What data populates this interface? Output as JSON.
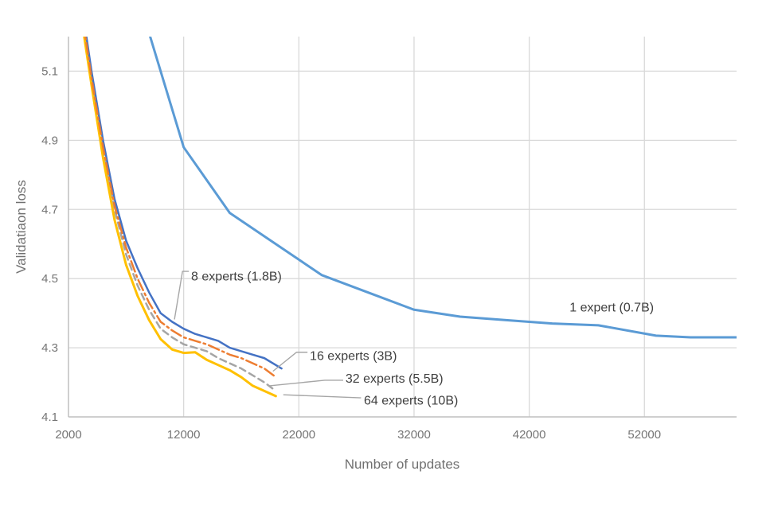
{
  "chart_data": {
    "type": "line",
    "title": "",
    "xlabel": "Number of updates",
    "ylabel": "Validatiaon loss",
    "xlim": [
      2000,
      60000
    ],
    "ylim": [
      4.1,
      5.2
    ],
    "x_ticks": [
      2000,
      12000,
      22000,
      32000,
      42000,
      52000
    ],
    "y_ticks": [
      4.1,
      4.3,
      4.5,
      4.7,
      4.9,
      5.1
    ],
    "grid": true,
    "legend_position": "inline-annotations",
    "colors": {
      "grid": "#D9D9D9",
      "axis": "#BFBFBF",
      "tick_text": "#757575",
      "annotation_text": "#404040",
      "leader_line": "#A6A6A6"
    },
    "series": [
      {
        "name": "1 expert (0.7B)",
        "color": "#5B9BD5",
        "style": "solid",
        "width": 3,
        "points": [
          [
            8000,
            5.32
          ],
          [
            12000,
            4.88
          ],
          [
            16000,
            4.69
          ],
          [
            20000,
            4.6
          ],
          [
            24000,
            4.51
          ],
          [
            28000,
            4.46
          ],
          [
            32000,
            4.41
          ],
          [
            36000,
            4.39
          ],
          [
            40000,
            4.38
          ],
          [
            44000,
            4.37
          ],
          [
            48000,
            4.365
          ],
          [
            53000,
            4.335
          ],
          [
            56000,
            4.33
          ],
          [
            60000,
            4.33
          ]
        ]
      },
      {
        "name": "32 experts (5.5B)",
        "color": "#A5A5A5",
        "style": "dashed",
        "width": 2.5,
        "points": [
          [
            2000,
            5.52
          ],
          [
            4000,
            5.07
          ],
          [
            5000,
            4.87
          ],
          [
            6000,
            4.7
          ],
          [
            7000,
            4.57
          ],
          [
            8000,
            4.48
          ],
          [
            9000,
            4.41
          ],
          [
            10000,
            4.355
          ],
          [
            11000,
            4.33
          ],
          [
            12000,
            4.31
          ],
          [
            13000,
            4.3
          ],
          [
            14000,
            4.29
          ],
          [
            15000,
            4.27
          ],
          [
            16000,
            4.255
          ],
          [
            17000,
            4.24
          ],
          [
            18000,
            4.22
          ],
          [
            19000,
            4.2
          ],
          [
            20000,
            4.175
          ]
        ]
      },
      {
        "name": "64 experts (10B)",
        "color": "#FFC000",
        "style": "solid",
        "width": 3,
        "points": [
          [
            2000,
            5.5
          ],
          [
            4000,
            5.06
          ],
          [
            5000,
            4.85
          ],
          [
            6000,
            4.67
          ],
          [
            7000,
            4.54
          ],
          [
            8000,
            4.45
          ],
          [
            9000,
            4.38
          ],
          [
            10000,
            4.325
          ],
          [
            11000,
            4.295
          ],
          [
            12000,
            4.285
          ],
          [
            13000,
            4.287
          ],
          [
            14000,
            4.265
          ],
          [
            15000,
            4.25
          ],
          [
            16000,
            4.235
          ],
          [
            17000,
            4.215
          ],
          [
            18000,
            4.19
          ],
          [
            19000,
            4.175
          ],
          [
            20000,
            4.16
          ]
        ]
      },
      {
        "name": "8 experts (1.8B)",
        "color": "#4472C4",
        "style": "solid",
        "width": 2.5,
        "points": [
          [
            2000,
            5.55
          ],
          [
            4000,
            5.1
          ],
          [
            5000,
            4.9
          ],
          [
            6000,
            4.73
          ],
          [
            7000,
            4.61
          ],
          [
            8000,
            4.53
          ],
          [
            9000,
            4.46
          ],
          [
            10000,
            4.4
          ],
          [
            11000,
            4.375
          ],
          [
            12000,
            4.355
          ],
          [
            13000,
            4.34
          ],
          [
            14000,
            4.33
          ],
          [
            15000,
            4.32
          ],
          [
            16000,
            4.3
          ],
          [
            17000,
            4.29
          ],
          [
            18000,
            4.28
          ],
          [
            19000,
            4.27
          ],
          [
            20500,
            4.24
          ]
        ]
      },
      {
        "name": "16 experts (3B)",
        "color": "#ED7D31",
        "style": "dashdot",
        "width": 2.5,
        "points": [
          [
            2000,
            5.53
          ],
          [
            4000,
            5.08
          ],
          [
            5000,
            4.88
          ],
          [
            6000,
            4.71
          ],
          [
            7000,
            4.59
          ],
          [
            8000,
            4.5
          ],
          [
            9000,
            4.43
          ],
          [
            10000,
            4.375
          ],
          [
            11000,
            4.35
          ],
          [
            12000,
            4.33
          ],
          [
            13000,
            4.32
          ],
          [
            14000,
            4.31
          ],
          [
            15000,
            4.295
          ],
          [
            16000,
            4.28
          ],
          [
            17000,
            4.27
          ],
          [
            18000,
            4.255
          ],
          [
            19000,
            4.24
          ],
          [
            20000,
            4.215
          ]
        ]
      }
    ],
    "annotations": [
      {
        "text": "1 expert (0.7B)",
        "x": 45500,
        "y": 4.418,
        "leader": []
      },
      {
        "text": "8 experts (1.8B)",
        "x": 12650,
        "y": 4.507,
        "leader": [
          [
            12450,
            4.521
          ],
          [
            11900,
            4.521
          ],
          [
            11200,
            4.382
          ]
        ]
      },
      {
        "text": "16 experts (3B)",
        "x": 22950,
        "y": 4.277,
        "leader": [
          [
            22750,
            4.287
          ],
          [
            21800,
            4.287
          ],
          [
            19750,
            4.232
          ]
        ]
      },
      {
        "text": "32 experts (5.5B)",
        "x": 26050,
        "y": 4.212,
        "leader": [
          [
            25850,
            4.206
          ],
          [
            24250,
            4.206
          ],
          [
            19450,
            4.19
          ]
        ]
      },
      {
        "text": "64 experts (10B)",
        "x": 27650,
        "y": 4.148,
        "leader": [
          [
            27400,
            4.155
          ],
          [
            20650,
            4.164
          ]
        ]
      }
    ]
  }
}
